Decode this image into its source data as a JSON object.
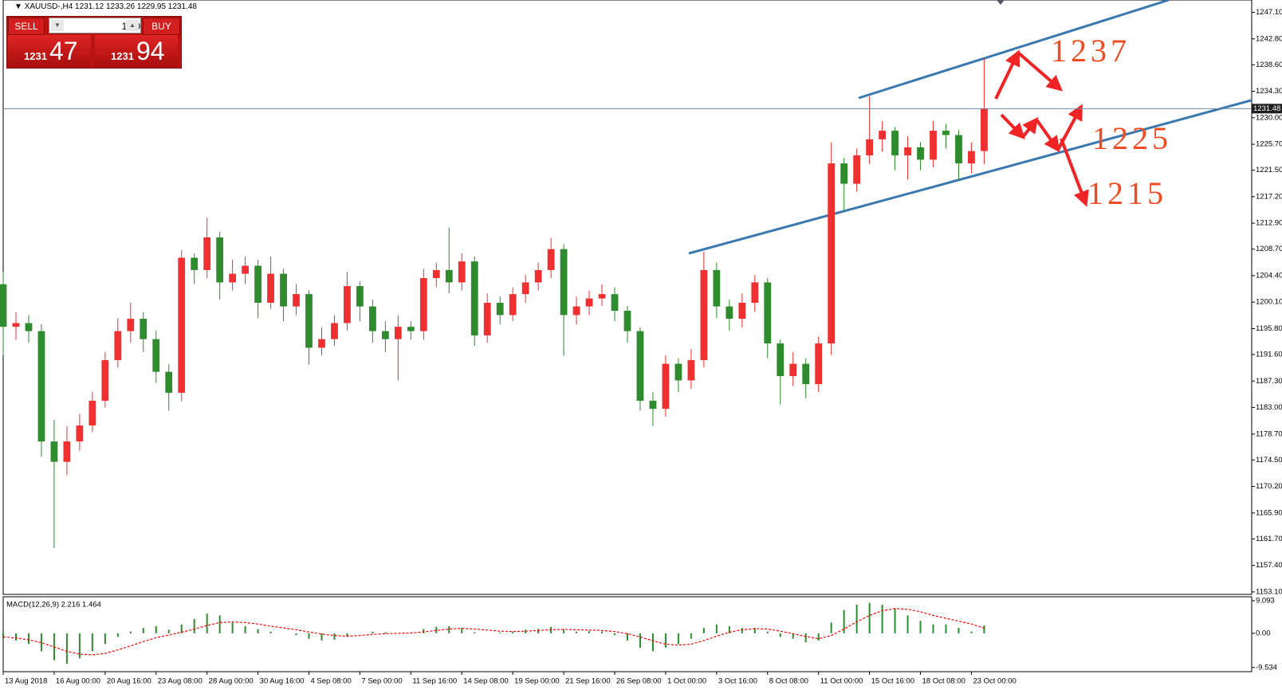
{
  "chart_data": [
    {
      "type": "candlestick",
      "title": "XAUUSD-,H4 1231.12 1233.26 1229.95 1231.48",
      "up_color": "#f03030",
      "down_color": "#2e8b2e",
      "open": [
        1203.0,
        1196.1,
        1196.7,
        1195.4,
        1177.5,
        1174.2,
        1177.5,
        1180.1,
        1184.1,
        1190.7,
        1195.4,
        1197.4,
        1194.1,
        1188.8,
        1185.4,
        1207.3,
        1205.3,
        1210.6,
        1203.3,
        1204.7,
        1206.0,
        1200.0,
        1204.7,
        1199.4,
        1201.4,
        1192.7,
        1194.1,
        1196.7,
        1202.7,
        1199.4,
        1195.4,
        1194.1,
        1196.1,
        1195.4,
        1204.0,
        1205.3,
        1203.3,
        1206.7,
        1194.7,
        1200.0,
        1198.0,
        1201.4,
        1203.3,
        1205.3,
        1208.7,
        1198.0,
        1199.4,
        1200.7,
        1201.4,
        1198.7,
        1195.4,
        1184.1,
        1182.8,
        1190.1,
        1187.4,
        1190.7,
        1205.3,
        1199.4,
        1197.4,
        1200.0,
        1203.3,
        1193.4,
        1188.1,
        1190.1,
        1186.8,
        1193.4,
        1222.6,
        1219.3,
        1223.9,
        1226.5,
        1227.9,
        1223.9,
        1225.2,
        1223.2,
        1227.9,
        1227.2,
        1222.6,
        1224.6
      ],
      "high": [
        1205.0,
        1198.5,
        1198.0,
        1196.5,
        1181.0,
        1180.0,
        1182.0,
        1185.5,
        1192.0,
        1197.5,
        1200.0,
        1198.5,
        1195.5,
        1190.0,
        1208.5,
        1208.0,
        1213.8,
        1211.5,
        1207.0,
        1207.5,
        1207.0,
        1207.5,
        1205.5,
        1203.0,
        1202.0,
        1196.0,
        1198.0,
        1205.0,
        1203.5,
        1200.5,
        1197.0,
        1198.0,
        1197.0,
        1205.5,
        1206.5,
        1212.2,
        1208.0,
        1207.5,
        1201.5,
        1201.0,
        1202.5,
        1204.5,
        1206.5,
        1210.5,
        1209.5,
        1201.0,
        1202.0,
        1203.0,
        1202.5,
        1199.5,
        1196.0,
        1185.5,
        1191.5,
        1191.0,
        1192.5,
        1208.3,
        1206.5,
        1200.5,
        1201.5,
        1204.5,
        1204.0,
        1194.0,
        1192.0,
        1191.0,
        1194.5,
        1226.0,
        1223.5,
        1225.0,
        1233.5,
        1229.5,
        1228.5,
        1227.0,
        1226.0,
        1229.5,
        1229.0,
        1228.0,
        1226.0,
        1239.6
      ],
      "low": [
        1191.5,
        1194.0,
        1193.5,
        1175.0,
        1160.2,
        1172.0,
        1176.0,
        1179.0,
        1183.0,
        1189.5,
        1193.5,
        1192.0,
        1187.0,
        1182.5,
        1184.0,
        1203.0,
        1204.0,
        1200.5,
        1202.0,
        1203.0,
        1197.5,
        1199.0,
        1197.0,
        1198.0,
        1190.0,
        1191.5,
        1193.0,
        1195.5,
        1197.0,
        1193.5,
        1192.0,
        1187.4,
        1194.0,
        1194.0,
        1202.5,
        1201.5,
        1202.0,
        1193.0,
        1193.5,
        1196.5,
        1197.0,
        1200.0,
        1202.0,
        1204.0,
        1191.4,
        1196.5,
        1198.0,
        1199.5,
        1197.0,
        1193.5,
        1182.5,
        1180.0,
        1181.5,
        1185.5,
        1186.0,
        1189.5,
        1197.5,
        1195.5,
        1196.0,
        1198.5,
        1191.0,
        1183.5,
        1186.5,
        1184.5,
        1185.5,
        1191.5,
        1215.0,
        1218.0,
        1222.5,
        1224.5,
        1221.5,
        1220.0,
        1221.5,
        1222.0,
        1225.0,
        1220.0,
        1221.0,
        1222.5
      ],
      "close": [
        1196.1,
        1196.7,
        1195.4,
        1177.5,
        1174.2,
        1177.5,
        1180.1,
        1184.1,
        1190.7,
        1195.4,
        1197.4,
        1194.1,
        1188.8,
        1185.4,
        1207.3,
        1205.3,
        1210.6,
        1203.3,
        1204.7,
        1206.0,
        1200.0,
        1204.7,
        1199.4,
        1201.4,
        1192.7,
        1194.1,
        1196.7,
        1202.7,
        1199.4,
        1195.4,
        1194.1,
        1196.1,
        1195.4,
        1204.0,
        1205.3,
        1203.3,
        1206.7,
        1194.7,
        1200.0,
        1198.0,
        1201.4,
        1203.3,
        1205.3,
        1208.7,
        1198.0,
        1199.4,
        1200.7,
        1201.4,
        1198.7,
        1195.4,
        1184.1,
        1182.8,
        1190.1,
        1187.4,
        1190.7,
        1205.3,
        1199.4,
        1197.4,
        1200.0,
        1203.3,
        1193.4,
        1188.1,
        1190.1,
        1186.8,
        1193.4,
        1222.6,
        1219.3,
        1223.9,
        1226.5,
        1227.9,
        1223.9,
        1225.2,
        1223.2,
        1227.9,
        1227.2,
        1222.6,
        1224.6,
        1231.5
      ],
      "xlim": [
        0,
        98
      ],
      "xticks": [
        {
          "value": 0,
          "label": "13 Aug 2018"
        },
        {
          "value": 4,
          "label": "16 Aug 00:00"
        },
        {
          "value": 8,
          "label": "20 Aug 16:00"
        },
        {
          "value": 12,
          "label": "23 Aug 08:00"
        },
        {
          "value": 16,
          "label": "28 Aug 00:00"
        },
        {
          "value": 20,
          "label": "30 Aug 16:00"
        },
        {
          "value": 24,
          "label": "4 Sep 08:00"
        },
        {
          "value": 28,
          "label": "7 Sep 00:00"
        },
        {
          "value": 32,
          "label": "11 Sep 16:00"
        },
        {
          "value": 36,
          "label": "14 Sep 08:00"
        },
        {
          "value": 40,
          "label": "19 Sep 00:00"
        },
        {
          "value": 44,
          "label": "21 Sep 16:00"
        },
        {
          "value": 48,
          "label": "26 Sep 08:00"
        },
        {
          "value": 52,
          "label": "1 Oct 00:00"
        },
        {
          "value": 56,
          "label": "3 Oct 16:00"
        },
        {
          "value": 60,
          "label": "8 Oct 08:00"
        },
        {
          "value": 64,
          "label": "11 Oct 00:00"
        },
        {
          "value": 68,
          "label": "15 Oct 16:00"
        },
        {
          "value": 72,
          "label": "18 Oct 08:00"
        },
        {
          "value": 76,
          "label": "23 Oct 00:00"
        }
      ],
      "ylim": [
        1152.7,
        1249.1
      ],
      "yticks": [
        {
          "value": 1247.1,
          "label": "1247.10"
        },
        {
          "value": 1242.8,
          "label": "1242.80"
        },
        {
          "value": 1238.6,
          "label": "1238.60"
        },
        {
          "value": 1234.3,
          "label": "1234.30"
        },
        {
          "value": 1230.0,
          "label": "1230.00"
        },
        {
          "value": 1225.7,
          "label": "1225.70"
        },
        {
          "value": 1221.5,
          "label": "1221.50"
        },
        {
          "value": 1217.2,
          "label": "1217.20"
        },
        {
          "value": 1212.9,
          "label": "1212.90"
        },
        {
          "value": 1208.7,
          "label": "1208.70"
        },
        {
          "value": 1204.4,
          "label": "1204.40"
        },
        {
          "value": 1200.1,
          "label": "1200.10"
        },
        {
          "value": 1195.8,
          "label": "1195.80"
        },
        {
          "value": 1191.6,
          "label": "1191.60"
        },
        {
          "value": 1187.3,
          "label": "1187.30"
        },
        {
          "value": 1183.0,
          "label": "1183.00"
        },
        {
          "value": 1178.7,
          "label": "1178.70"
        },
        {
          "value": 1174.5,
          "label": "1174.50"
        },
        {
          "value": 1170.2,
          "label": "1170.20"
        },
        {
          "value": 1165.9,
          "label": "1165.90"
        },
        {
          "value": 1161.7,
          "label": "1161.70"
        },
        {
          "value": 1157.4,
          "label": "1157.40"
        },
        {
          "value": 1153.1,
          "label": "1153.10"
        }
      ],
      "current_price": {
        "value": 1231.48,
        "label": "1231.48"
      },
      "annotations": [
        "1237",
        "1225",
        "1215"
      ],
      "grid": false
    },
    {
      "type": "macd",
      "title": "MACD(12,26,9) 2.216 1.464",
      "histogram": {
        "color": "#2e8b2e",
        "values": [
          -1.5,
          -2,
          -3,
          -5,
          -7.5,
          -8.5,
          -7,
          -5,
          -3,
          -1,
          0.5,
          1.5,
          2,
          1,
          2.5,
          4,
          5.5,
          5,
          3,
          2,
          1.2,
          0.5,
          0,
          -0.5,
          -1.5,
          -2,
          -1.8,
          -1,
          0,
          0.5,
          0.3,
          0,
          0.2,
          1.2,
          1.8,
          2,
          1.5,
          0.3,
          0,
          0.2,
          0.5,
          1,
          1.2,
          1.8,
          1,
          0.5,
          0.6,
          0.5,
          -0.5,
          -2,
          -4,
          -5,
          -4,
          -3,
          -1.5,
          1.5,
          2.5,
          2,
          1.5,
          1.5,
          0.5,
          -1,
          -1.5,
          -2.5,
          -2,
          3,
          6.5,
          8,
          8.5,
          8,
          7,
          5,
          3.5,
          2.5,
          2.5,
          1.5,
          0.5,
          2.216
        ]
      },
      "signal": {
        "color": "#ff0000",
        "values": [
          -1,
          -1.3,
          -1.8,
          -2.6,
          -3.8,
          -5,
          -5.8,
          -6,
          -5.6,
          -4.6,
          -3.5,
          -2.3,
          -1.2,
          -0.5,
          0.3,
          1.2,
          2.2,
          3,
          3.2,
          3,
          2.6,
          2,
          1.5,
          1,
          0.4,
          -0.2,
          -0.6,
          -0.8,
          -0.6,
          -0.3,
          -0.1,
          0,
          0.1,
          0.4,
          0.8,
          1.2,
          1.4,
          1.2,
          0.9,
          0.6,
          0.5,
          0.6,
          0.8,
          1,
          1.1,
          1,
          0.9,
          0.8,
          0.5,
          -0.1,
          -1,
          -2.1,
          -3,
          -3.3,
          -3,
          -2,
          -0.8,
          0.3,
          1,
          1.3,
          1.2,
          0.6,
          -0.1,
          -0.9,
          -1.5,
          -0.6,
          1.2,
          3.2,
          5,
          6.3,
          6.9,
          6.7,
          6,
          5,
          4.2,
          3.4,
          2.6,
          1.464
        ]
      },
      "ylim": [
        -10.7,
        10.2
      ],
      "yticks": [
        9.093,
        {
          "value": 0,
          "label": "0.00"
        },
        -9.534
      ]
    }
  ],
  "trade_panel": {
    "sell": "SELL",
    "buy": "BUY",
    "lot": "1.00",
    "sell_price_big": "1231",
    "sell_price_pips": "47",
    "buy_price_big": "1231",
    "buy_price_pips": "94"
  }
}
